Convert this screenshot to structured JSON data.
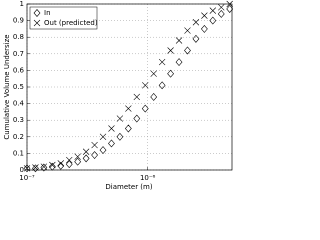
{
  "chart_data": {
    "type": "scatter",
    "x_label": "Diameter (m)",
    "y_label": "Cumulative Volume Undersize",
    "x": [
      1e-07,
      1.175e-07,
      1.38e-07,
      1.622e-07,
      1.905e-07,
      2.239e-07,
      2.63e-07,
      3.09e-07,
      3.631e-07,
      4.266e-07,
      5.012e-07,
      5.888e-07,
      6.918e-07,
      8.128e-07,
      9.55e-07,
      1.122e-06,
      1.318e-06,
      1.549e-06,
      1.82e-06,
      2.138e-06,
      2.512e-06,
      2.951e-06,
      3.467e-06,
      4.074e-06,
      4.786e-06
    ],
    "series": [
      {
        "name": "In",
        "marker": "diamond",
        "color": "#000000",
        "values": [
          0.01,
          0.01,
          0.015,
          0.02,
          0.025,
          0.035,
          0.05,
          0.07,
          0.09,
          0.12,
          0.16,
          0.2,
          0.25,
          0.31,
          0.37,
          0.44,
          0.51,
          0.58,
          0.65,
          0.72,
          0.79,
          0.85,
          0.9,
          0.94,
          0.97
        ]
      },
      {
        "name": "Out (predicted)",
        "marker": "cross",
        "color": "#000000",
        "values": [
          0.01,
          0.015,
          0.02,
          0.03,
          0.04,
          0.06,
          0.08,
          0.11,
          0.15,
          0.2,
          0.25,
          0.31,
          0.37,
          0.44,
          0.51,
          0.58,
          0.65,
          0.72,
          0.78,
          0.84,
          0.89,
          0.93,
          0.96,
          0.98,
          1.0
        ]
      }
    ],
    "xscale": "log",
    "xlim": [
      1e-07,
      5e-06
    ],
    "xticks": [
      {
        "value": 1e-07,
        "label": "10⁻⁷"
      },
      {
        "value": 1e-06,
        "label": "10⁻⁶"
      }
    ],
    "ylim": [
      0,
      1
    ],
    "yticks": [
      0,
      0.1,
      0.2,
      0.3,
      0.4,
      0.5,
      0.6,
      0.7,
      0.8,
      0.9,
      1
    ],
    "grid": true,
    "legend": "upper left"
  }
}
